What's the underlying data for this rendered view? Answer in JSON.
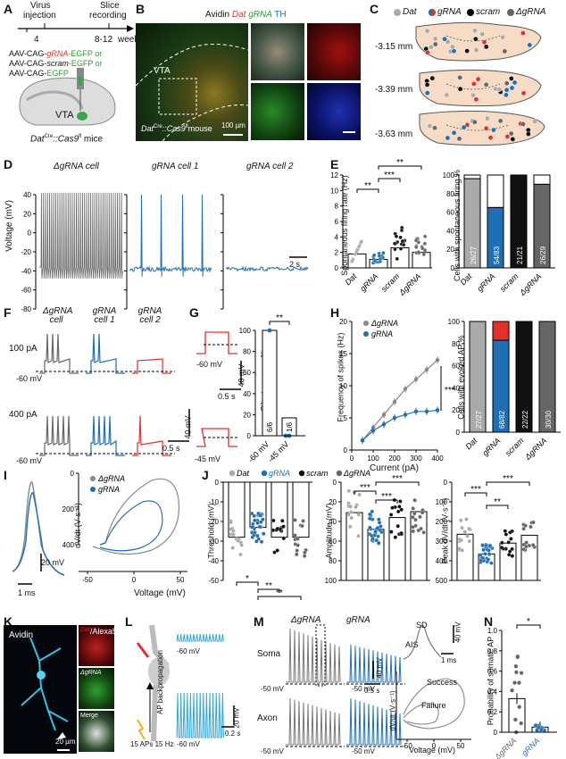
{
  "panels": {
    "a": "A",
    "b": "B",
    "c": "C",
    "d": "D",
    "e": "E",
    "f": "F",
    "g": "G",
    "h": "H",
    "i": "I",
    "j": "J",
    "k": "K",
    "l": "L",
    "m": "M",
    "n": "N"
  },
  "A": {
    "virus": "Virus",
    "injection": "injection",
    "slice": "Slice",
    "recording": "recording",
    "t4": "4",
    "t812": "8-12",
    "week": "week",
    "c1": "AAV-CAG-",
    "c1g": "gRNA",
    "c1e": "-EGFP or",
    "c2": "AAV-CAG-",
    "c2g": "scram",
    "c2e": "-EGFP or",
    "c3": "AAV-CAG-",
    "c3e": "EGFP",
    "vta": "VTA",
    "mouse": "Dat",
    "mouse_sup1": "Cre",
    "mouse_mid": "::Cas9",
    "mouse_sup2": "fl",
    "mouse_end": " mice"
  },
  "B": {
    "avidin": "Avidin ",
    "dat": "Dat ",
    "grna": "gRNA ",
    "th": "TH",
    "vta": "VTA",
    "mouse": "Dat",
    "mouse_sup1": "Cre",
    "mouse_mid": "::Cas9",
    "mouse_sup2": "fl",
    "mouse_end": " mouse",
    "scale": "100 µm"
  },
  "C": {
    "legend": [
      "Dat",
      "gRNA",
      "scram",
      "ΔgRNA"
    ],
    "levels": [
      "-3.15 mm",
      "-3.39 mm",
      "-3.63 mm"
    ]
  },
  "D": {
    "titles": [
      "ΔgRNA cell",
      "gRNA cell 1",
      "gRNA cell 2"
    ],
    "ylabel": "Voltage (mV)",
    "yticks": [
      "40",
      "20",
      "0",
      "-20",
      "-40",
      "-60",
      "-80"
    ],
    "scale": "2 s"
  },
  "E": {
    "ylabel": "Spontaneous firing rate (Hz)",
    "yticks": [
      "0",
      "2",
      "4",
      "6",
      "8",
      "10",
      "12"
    ],
    "groups": [
      "Dat",
      "gRNA",
      "scram",
      "ΔgRNA"
    ],
    "stars": [
      "**",
      "***",
      "**"
    ],
    "ylabel2": "Cells with spontaneous firing %",
    "yticks2": [
      "0",
      "20",
      "40",
      "60",
      "80",
      "100"
    ],
    "counts": [
      "26/27",
      "54/83",
      "21/21",
      "26/29"
    ]
  },
  "F": {
    "titles": [
      "ΔgRNA cell",
      "gRNA cell 1",
      "gRNA cell  2"
    ],
    "amp1": "100 pA",
    "amp2": "400 pA",
    "hold": "-60 mV",
    "scale_v": "40 mV",
    "scale_t": "0.5 s"
  },
  "G": {
    "hold1": "-60 mV",
    "hold2": "-45 mV",
    "scale_v": "40 mV",
    "scale_t": "0.5 s",
    "ylabel": "Silent neurons %",
    "yticks": [
      "0",
      "20",
      "40",
      "60",
      "80",
      "100"
    ],
    "xlabels": [
      "-60 mV",
      "-45 mV"
    ],
    "counts": [
      "6/6",
      "1/6"
    ],
    "stars": "**"
  },
  "H": {
    "legend": [
      "ΔgRNA",
      "gRNA"
    ],
    "ylabel": "Frequency of spikes (Hz)",
    "xlabel": "Current (pA)",
    "yticks": [
      "0",
      "5",
      "10",
      "15",
      "20"
    ],
    "xticks": [
      "0",
      "100",
      "200",
      "300",
      "400"
    ],
    "stars": "***",
    "ylabel2": "Cells with evoked AP %",
    "yticks2": [
      "0",
      "20",
      "40",
      "60",
      "80",
      "100"
    ],
    "groups": [
      "Dat",
      "gRNA",
      "scram",
      "ΔgRNA"
    ],
    "counts": [
      "27/27",
      "68/82",
      "22/22",
      "30/30"
    ]
  },
  "I": {
    "legend": [
      "ΔgRNA",
      "gRNA"
    ],
    "scale_v": "20 mV",
    "scale_t": "1 ms",
    "ylabel": "dV/dt (V·s⁻¹)",
    "xlabel": "Voltage (mV)",
    "yticks": [
      "400",
      "200",
      "0"
    ],
    "xticks": [
      "-50",
      "0",
      "50"
    ]
  },
  "J": {
    "legend": [
      "Dat",
      "gRNA",
      "scram",
      "ΔgRNA"
    ],
    "thr_label": "Threshold (mV)",
    "thr_ticks": [
      "0",
      "-10",
      "-20",
      "-30",
      "-40",
      "-50"
    ],
    "thr_stars": [
      "*",
      "**",
      "**"
    ],
    "amp_label": "Amplitude (mV)",
    "amp_ticks": [
      "0",
      "20",
      "40",
      "60",
      "80",
      "100"
    ],
    "amp_stars": [
      "***",
      "***",
      "***"
    ],
    "pk_label": "Peak dV/dt (V·s⁻¹)",
    "pk_ticks": [
      "0",
      "100",
      "200",
      "300",
      "400",
      "500"
    ],
    "pk_stars": [
      "***",
      "**",
      "***"
    ]
  },
  "K": {
    "avidin": "Avidin",
    "dat": "Dat",
    "alexa": "/Alexa555",
    "dgrna": "ΔgRNA",
    "merge": "Merge",
    "scale": "20 µm"
  },
  "L": {
    "bap": "AP backpropagation",
    "stim": "15 APs 15 Hz",
    "v1": "-60 mV",
    "v2": "-60 mV",
    "scale_v": "20 mV",
    "scale_t": "0.2 s"
  },
  "M": {
    "titles": [
      "ΔgRNA",
      "gRNA"
    ],
    "soma": "Soma",
    "axon": "Axon",
    "v": [
      "-50 mV",
      "-50 mV",
      "-50 mV",
      "-50 mV"
    ],
    "sd": "SD",
    "ais": "AIS",
    "scale_v": "40 mV",
    "scale_t": "1 ms",
    "scale_v2": "40 mV",
    "scale_t2": "0.5 s",
    "success": "Success",
    "failure": "Failure",
    "ylabel": "dV/dt (V·s⁻¹)",
    "xlabel": "Voltage (mV)",
    "xticks": [
      "-50",
      "0",
      "50"
    ]
  },
  "N": {
    "ylabel": "Probability of somatic AP",
    "yticks": [
      "0",
      "0.2",
      "0.4",
      "0.6",
      "0.8",
      "1.0"
    ],
    "groups": [
      "ΔgRNA",
      "gRNA"
    ],
    "stars": "*"
  },
  "chart_data": [
    {
      "type": "bar",
      "title": "Spontaneous firing rate",
      "categories": [
        "Dat",
        "gRNA",
        "scram",
        "ΔgRNA"
      ],
      "values": [
        1.8,
        1.1,
        2.6,
        2.0
      ],
      "ylabel": "Spontaneous firing rate (Hz)",
      "ylim": [
        0,
        12
      ]
    },
    {
      "type": "bar",
      "title": "Cells with spontaneous firing %",
      "categories": [
        "Dat",
        "gRNA",
        "scram",
        "ΔgRNA"
      ],
      "values": [
        96,
        65,
        100,
        90
      ],
      "ylim": [
        0,
        100
      ]
    },
    {
      "type": "bar",
      "title": "Silent neurons %",
      "categories": [
        "-60 mV",
        "-45 mV"
      ],
      "values": [
        100,
        17
      ],
      "ylim": [
        0,
        100
      ]
    },
    {
      "type": "line",
      "title": "Frequency of spikes",
      "x": [
        50,
        100,
        150,
        200,
        250,
        300,
        350,
        400
      ],
      "series": [
        {
          "name": "ΔgRNA",
          "values": [
            1.5,
            3.5,
            5.5,
            7.5,
            9.5,
            11,
            12.5,
            14
          ]
        },
        {
          "name": "gRNA",
          "values": [
            1.5,
            3,
            4,
            5,
            5.5,
            6,
            6,
            6.2
          ]
        }
      ],
      "xlabel": "Current (pA)",
      "ylabel": "Frequency of spikes (Hz)",
      "ylim": [
        0,
        20
      ]
    },
    {
      "type": "bar",
      "title": "Cells with evoked AP %",
      "categories": [
        "Dat",
        "gRNA",
        "scram",
        "ΔgRNA"
      ],
      "values": [
        100,
        83,
        100,
        100
      ],
      "ylim": [
        0,
        100
      ]
    },
    {
      "type": "bar",
      "title": "Threshold",
      "categories": [
        "Dat",
        "gRNA",
        "scram",
        "ΔgRNA"
      ],
      "values": [
        -28,
        -23,
        -28,
        -28
      ],
      "ylim": [
        -50,
        0
      ]
    },
    {
      "type": "bar",
      "title": "Amplitude",
      "categories": [
        "Dat",
        "gRNA",
        "scram",
        "ΔgRNA"
      ],
      "values": [
        69,
        52,
        64,
        70
      ],
      "ylim": [
        0,
        100
      ]
    },
    {
      "type": "bar",
      "title": "Peak dV/dt",
      "categories": [
        "Dat",
        "gRNA",
        "scram",
        "ΔgRNA"
      ],
      "values": [
        235,
        135,
        190,
        230
      ],
      "ylim": [
        0,
        500
      ]
    },
    {
      "type": "bar",
      "title": "Probability of somatic AP",
      "categories": [
        "ΔgRNA",
        "gRNA"
      ],
      "values": [
        0.33,
        0.05
      ],
      "ylim": [
        0,
        1.0
      ]
    }
  ]
}
